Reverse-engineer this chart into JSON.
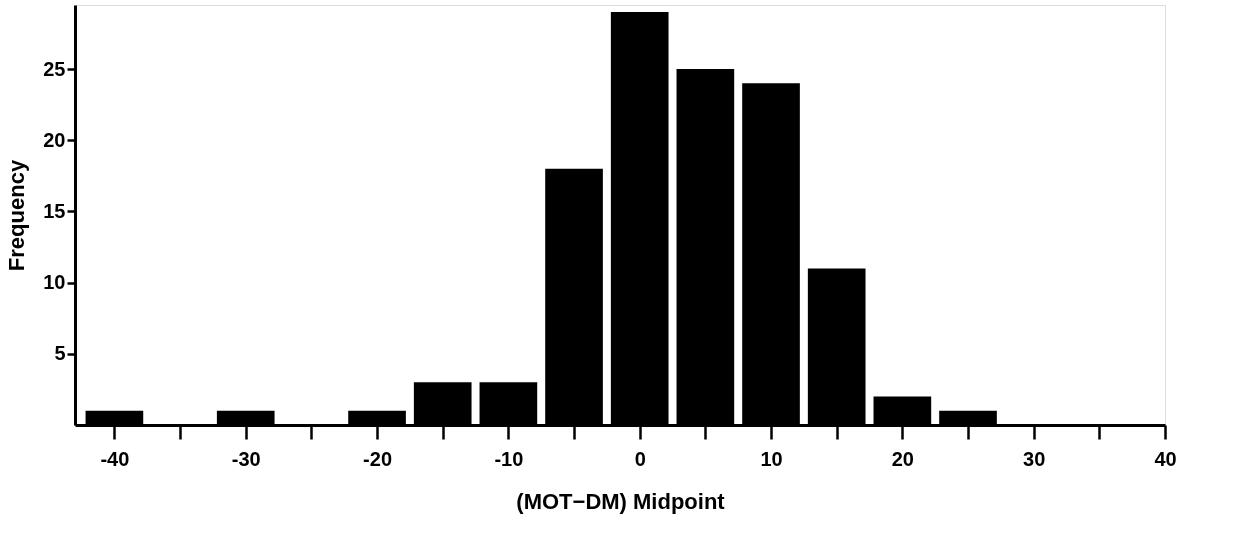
{
  "chart_data": {
    "type": "histogram",
    "xlabel": "(MOT−DM) Midpoint",
    "ylabel": "Frequency",
    "bins": [
      -42.5,
      -37.5,
      -32.5,
      -27.5,
      -22.5,
      -17.5,
      -12.5,
      -7.5,
      -2.5,
      2.5,
      7.5,
      12.5,
      17.5,
      22.5,
      27.5
    ],
    "values": [
      1,
      0,
      1,
      0,
      1,
      3,
      3,
      18,
      29,
      25,
      24,
      11,
      2,
      1
    ],
    "color": "#000000",
    "xlim": [
      -43,
      40
    ],
    "ylim": [
      0,
      29.5
    ],
    "xticks": [
      -40,
      {
        "value": -35,
        "label": null
      },
      -30,
      {
        "value": -25,
        "label": null
      },
      -20,
      {
        "value": -15,
        "label": null
      },
      -10,
      {
        "value": -5,
        "label": null
      },
      0,
      {
        "value": 5,
        "label": null
      },
      10,
      {
        "value": 15,
        "label": null
      },
      20,
      {
        "value": 25,
        "label": null
      },
      30,
      {
        "value": 35,
        "label": null
      },
      40
    ],
    "yticks": [
      5,
      10,
      15,
      20,
      25
    ],
    "grid": false
  }
}
